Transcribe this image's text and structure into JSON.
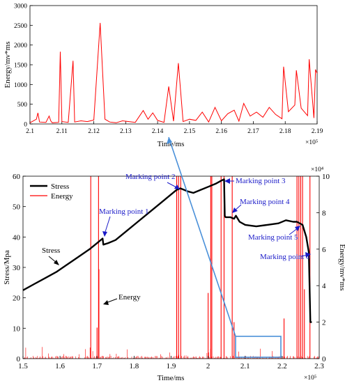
{
  "colors": {
    "stress": "#000000",
    "energy": "#ff0000",
    "annotation": "#1a1ac8",
    "highlight": "#4a90d9"
  },
  "chart_data": [
    {
      "type": "line",
      "xlabel": "Time/ms",
      "ylabel": "Energy/mv*ms",
      "x_multiplier": "×10⁵",
      "xlim": [
        2.1,
        2.19
      ],
      "ylim": [
        0,
        3000
      ],
      "xticks": [
        "2.1",
        "2.11",
        "2.12",
        "2.13",
        "2.14",
        "2.15",
        "2.16",
        "2.17",
        "2.18",
        "2.19"
      ],
      "yticks": [
        "0",
        "500",
        "1000",
        "1500",
        "2000",
        "2500",
        "3000"
      ],
      "series": [
        {
          "color": "#ff0000",
          "x": [
            2.1,
            2.102,
            2.1025,
            2.103,
            2.105,
            2.106,
            2.1065,
            2.107,
            2.109,
            2.1095,
            2.11,
            2.112,
            2.1135,
            2.114,
            2.116,
            2.118,
            2.12,
            2.122,
            2.1235,
            2.125,
            2.127,
            2.129,
            2.131,
            2.133,
            2.1355,
            2.137,
            2.1385,
            2.14,
            2.142,
            2.1435,
            2.145,
            2.1465,
            2.148,
            2.15,
            2.152,
            2.154,
            2.156,
            2.158,
            2.16,
            2.162,
            2.164,
            2.1655,
            2.167,
            2.169,
            2.171,
            2.173,
            2.175,
            2.177,
            2.179,
            2.1795,
            2.181,
            2.183,
            2.1835,
            2.185,
            2.187,
            2.1875,
            2.189,
            2.1895,
            2.19
          ],
          "y": [
            30,
            120,
            280,
            50,
            40,
            200,
            80,
            30,
            40,
            1830,
            60,
            40,
            1600,
            50,
            80,
            60,
            100,
            2560,
            120,
            50,
            30,
            80,
            60,
            40,
            340,
            120,
            280,
            90,
            40,
            950,
            70,
            1540,
            60,
            120,
            90,
            300,
            50,
            420,
            80,
            260,
            350,
            70,
            520,
            200,
            300,
            170,
            420,
            240,
            130,
            1450,
            310,
            480,
            1360,
            400,
            210,
            1640,
            150,
            1380,
            1280
          ]
        }
      ]
    },
    {
      "type": "line",
      "xlabel": "Time/ms",
      "ylabel_left": "Stress/Mpa",
      "ylabel_right": "Energy/mv*ms",
      "x_multiplier": "×10⁵",
      "right_multiplier": "×10⁴",
      "xlim": [
        1.5,
        2.3
      ],
      "ylim_left": [
        0,
        60
      ],
      "ylim_right": [
        0,
        10
      ],
      "xticks": [
        "1.5",
        "1.6",
        "1.7",
        "1.8",
        "1.9",
        "2",
        "2.1",
        "2.2",
        "2.3"
      ],
      "yticks_left": [
        "0",
        "10",
        "20",
        "30",
        "40",
        "50",
        "60"
      ],
      "yticks_right": [
        "0",
        "2",
        "4",
        "6",
        "8",
        "10"
      ],
      "legend": {
        "position": "top-left",
        "entries": [
          "Stress",
          "Energy"
        ]
      },
      "series": [
        {
          "name": "Stress",
          "axis": "left",
          "color": "#000000",
          "x": [
            1.5,
            1.53,
            1.56,
            1.59,
            1.62,
            1.65,
            1.68,
            1.7,
            1.715,
            1.717,
            1.73,
            1.75,
            1.78,
            1.81,
            1.84,
            1.87,
            1.9,
            1.915,
            1.925,
            1.935,
            1.945,
            1.96,
            1.98,
            2.0,
            2.02,
            2.035,
            2.043,
            2.045,
            2.047,
            2.06,
            2.07,
            2.075,
            2.085,
            2.1,
            2.13,
            2.16,
            2.19,
            2.21,
            2.23,
            2.24,
            2.255,
            2.265,
            2.272,
            2.276,
            2.28
          ],
          "y": [
            22.5,
            24.5,
            26.5,
            28.5,
            31,
            33.5,
            36,
            38,
            39.5,
            37.5,
            38,
            39,
            42,
            45,
            48,
            51,
            54,
            55.5,
            56,
            55.5,
            55,
            54.5,
            55.5,
            56.5,
            57.5,
            58.5,
            59,
            47,
            46.5,
            46.5,
            46,
            47,
            45,
            44,
            43.5,
            44,
            44.5,
            45.5,
            45,
            45,
            44,
            40,
            35,
            12,
            12
          ]
        },
        {
          "name": "Energy",
          "axis": "right",
          "color": "#ff0000",
          "spikes_x": [
            1.683,
            1.7,
            1.704,
            1.705,
            1.915,
            1.92,
            1.926,
            2.0,
            2.007,
            2.01,
            2.035,
            2.043,
            2.065,
            2.07,
            2.205,
            2.24,
            2.245,
            2.25,
            2.255,
            2.26,
            2.275
          ],
          "spikes_y": [
            10,
            1.7,
            10,
            4.9,
            10,
            10,
            10,
            3.6,
            10,
            10,
            10,
            10,
            10,
            2.0,
            2.2,
            10,
            10,
            10,
            10,
            3.8,
            10
          ]
        }
      ],
      "annotations": [
        {
          "label": "Marking point 1"
        },
        {
          "label": "Marking point 2"
        },
        {
          "label": "Marking point 3"
        },
        {
          "label": "Marking point 4"
        },
        {
          "label": "Marking point 5"
        },
        {
          "label": "Marking point 6"
        },
        {
          "label": "Stress"
        },
        {
          "label": "Energy"
        }
      ]
    }
  ]
}
